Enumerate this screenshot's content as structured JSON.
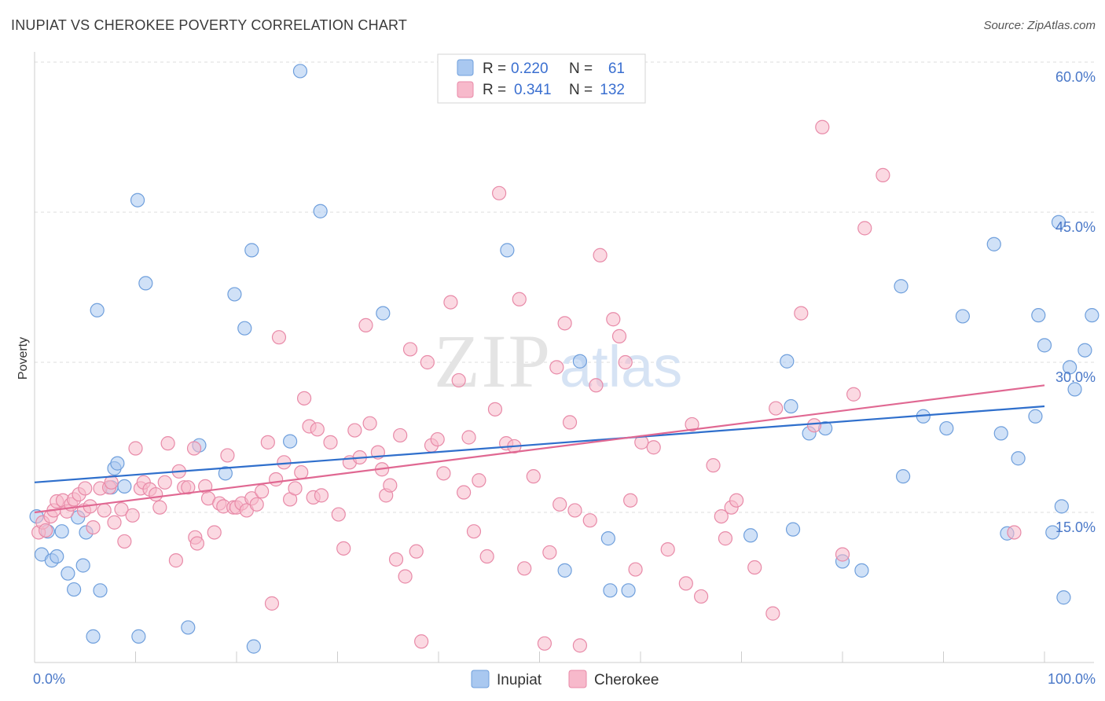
{
  "title": "INUPIAT VS CHEROKEE POVERTY CORRELATION CHART",
  "source": "Source: ZipAtlas.com",
  "watermark": {
    "zip": "ZIP",
    "atlas": "atlas"
  },
  "colors": {
    "inupiat_fill": "#a9c8f0",
    "inupiat_stroke": "#6f9fdc",
    "inupiat_line": "#2f6fcc",
    "cherokee_fill": "#f7b9cb",
    "cherokee_stroke": "#e88aa8",
    "cherokee_line": "#e06892",
    "tick_text": "#4a78c8",
    "grid": "#dcdcdc"
  },
  "legend": {
    "rows": [
      {
        "r_label": "R =",
        "r_value": "0.220",
        "n_label": "N =",
        "n_value": "61"
      },
      {
        "r_label": "R =",
        "r_value": "0.341",
        "n_label": "N =",
        "n_value": "132"
      }
    ]
  },
  "chart_data": {
    "type": "scatter",
    "title": "INUPIAT VS CHEROKEE POVERTY CORRELATION CHART",
    "xlabel": "",
    "ylabel": "Poverty",
    "xlim": [
      0,
      100
    ],
    "ylim": [
      0,
      60
    ],
    "x_tick_labels": [
      "0.0%",
      "100.0%"
    ],
    "y_ticks": [
      15,
      30,
      45,
      60
    ],
    "y_tick_labels": [
      "15.0%",
      "30.0%",
      "45.0%",
      "60.0%"
    ],
    "grid": "horizontal-dashed",
    "legend_position": "top-center",
    "series": [
      {
        "name": "Inupiat",
        "R": 0.22,
        "N": 61,
        "trend": {
          "x": [
            0,
            100
          ],
          "y": [
            18.0,
            25.6
          ]
        },
        "points": [
          [
            0.2,
            14.6
          ],
          [
            0.7,
            10.8
          ],
          [
            1.3,
            13.1
          ],
          [
            1.7,
            10.2
          ],
          [
            2.2,
            10.6
          ],
          [
            2.7,
            13.1
          ],
          [
            3.3,
            8.9
          ],
          [
            3.9,
            7.3
          ],
          [
            4.3,
            14.5
          ],
          [
            4.8,
            9.7
          ],
          [
            5.1,
            13.0
          ],
          [
            5.8,
            2.6
          ],
          [
            6.2,
            35.2
          ],
          [
            6.5,
            7.2
          ],
          [
            7.6,
            17.5
          ],
          [
            7.9,
            19.4
          ],
          [
            8.2,
            19.9
          ],
          [
            8.9,
            17.6
          ],
          [
            10.2,
            46.2
          ],
          [
            10.3,
            2.6
          ],
          [
            11.0,
            37.9
          ],
          [
            15.2,
            3.5
          ],
          [
            16.3,
            21.7
          ],
          [
            18.9,
            18.9
          ],
          [
            19.8,
            36.8
          ],
          [
            20.8,
            33.4
          ],
          [
            21.5,
            41.2
          ],
          [
            21.7,
            1.6
          ],
          [
            25.3,
            22.1
          ],
          [
            26.3,
            59.1
          ],
          [
            28.3,
            45.1
          ],
          [
            34.5,
            34.9
          ],
          [
            46.8,
            41.2
          ],
          [
            52.5,
            9.2
          ],
          [
            54.0,
            30.1
          ],
          [
            56.8,
            12.4
          ],
          [
            57.0,
            7.2
          ],
          [
            58.8,
            7.2
          ],
          [
            70.9,
            12.7
          ],
          [
            75.1,
            13.3
          ],
          [
            74.5,
            30.1
          ],
          [
            74.9,
            25.6
          ],
          [
            76.7,
            22.9
          ],
          [
            78.3,
            23.4
          ],
          [
            80.0,
            10.1
          ],
          [
            81.9,
            9.2
          ],
          [
            85.8,
            37.6
          ],
          [
            86.0,
            18.6
          ],
          [
            88.0,
            24.6
          ],
          [
            90.3,
            23.4
          ],
          [
            91.9,
            34.6
          ],
          [
            95.0,
            41.8
          ],
          [
            95.7,
            22.9
          ],
          [
            96.3,
            12.9
          ],
          [
            97.4,
            20.4
          ],
          [
            99.1,
            24.6
          ],
          [
            99.4,
            34.7
          ],
          [
            100.0,
            31.7
          ],
          [
            100.8,
            13.0
          ],
          [
            101.4,
            44.0
          ],
          [
            101.7,
            15.6
          ],
          [
            101.9,
            6.5
          ],
          [
            102.5,
            29.5
          ],
          [
            103.0,
            27.3
          ],
          [
            104.0,
            31.2
          ],
          [
            104.7,
            34.7
          ]
        ]
      },
      {
        "name": "Cherokee",
        "R": 0.341,
        "N": 132,
        "trend": {
          "x": [
            0,
            100
          ],
          "y": [
            15.0,
            27.7
          ]
        },
        "points": [
          [
            0.4,
            13.0
          ],
          [
            0.8,
            14.0
          ],
          [
            1.1,
            13.2
          ],
          [
            1.6,
            14.6
          ],
          [
            1.9,
            15.2
          ],
          [
            2.2,
            16.1
          ],
          [
            2.8,
            16.2
          ],
          [
            3.2,
            15.1
          ],
          [
            3.6,
            15.8
          ],
          [
            3.9,
            16.3
          ],
          [
            4.4,
            16.8
          ],
          [
            4.9,
            15.2
          ],
          [
            5.0,
            17.4
          ],
          [
            5.5,
            15.6
          ],
          [
            5.8,
            13.5
          ],
          [
            6.5,
            17.4
          ],
          [
            6.9,
            15.2
          ],
          [
            7.4,
            17.5
          ],
          [
            7.6,
            18.0
          ],
          [
            7.9,
            14.0
          ],
          [
            8.6,
            15.3
          ],
          [
            8.9,
            12.1
          ],
          [
            9.7,
            14.7
          ],
          [
            10.0,
            21.4
          ],
          [
            10.5,
            17.4
          ],
          [
            10.8,
            18.0
          ],
          [
            11.4,
            17.3
          ],
          [
            12.0,
            16.8
          ],
          [
            12.4,
            15.5
          ],
          [
            12.9,
            18.0
          ],
          [
            13.2,
            21.9
          ],
          [
            14.0,
            10.2
          ],
          [
            14.3,
            19.1
          ],
          [
            14.8,
            17.5
          ],
          [
            15.2,
            17.5
          ],
          [
            15.8,
            21.4
          ],
          [
            15.9,
            12.5
          ],
          [
            16.1,
            11.9
          ],
          [
            16.9,
            17.6
          ],
          [
            17.2,
            16.4
          ],
          [
            17.8,
            13.0
          ],
          [
            18.3,
            15.9
          ],
          [
            18.7,
            15.6
          ],
          [
            19.1,
            20.7
          ],
          [
            19.7,
            15.5
          ],
          [
            20.0,
            15.5
          ],
          [
            20.5,
            15.9
          ],
          [
            21.0,
            15.2
          ],
          [
            21.5,
            16.4
          ],
          [
            22.0,
            15.8
          ],
          [
            22.5,
            17.1
          ],
          [
            23.1,
            22.0
          ],
          [
            23.5,
            5.9
          ],
          [
            23.9,
            18.3
          ],
          [
            24.2,
            32.5
          ],
          [
            24.7,
            20.0
          ],
          [
            25.3,
            16.3
          ],
          [
            25.8,
            17.4
          ],
          [
            26.4,
            19.0
          ],
          [
            26.7,
            26.4
          ],
          [
            27.2,
            23.6
          ],
          [
            27.6,
            16.5
          ],
          [
            28.0,
            23.3
          ],
          [
            28.4,
            16.7
          ],
          [
            29.3,
            22.0
          ],
          [
            30.1,
            14.8
          ],
          [
            30.6,
            11.4
          ],
          [
            31.2,
            20.0
          ],
          [
            31.7,
            23.2
          ],
          [
            32.2,
            20.5
          ],
          [
            32.8,
            33.7
          ],
          [
            33.2,
            23.9
          ],
          [
            34.0,
            21.0
          ],
          [
            34.4,
            19.3
          ],
          [
            34.8,
            16.7
          ],
          [
            35.2,
            17.7
          ],
          [
            35.8,
            10.3
          ],
          [
            36.2,
            22.7
          ],
          [
            36.7,
            8.6
          ],
          [
            37.2,
            31.3
          ],
          [
            37.8,
            11.1
          ],
          [
            38.3,
            2.1
          ],
          [
            38.9,
            30.0
          ],
          [
            39.3,
            21.7
          ],
          [
            39.9,
            22.3
          ],
          [
            40.5,
            18.9
          ],
          [
            41.2,
            36.0
          ],
          [
            42.0,
            28.2
          ],
          [
            42.5,
            17.0
          ],
          [
            43.0,
            22.5
          ],
          [
            43.5,
            13.1
          ],
          [
            44.0,
            18.2
          ],
          [
            44.8,
            10.6
          ],
          [
            45.6,
            25.3
          ],
          [
            46.0,
            46.9
          ],
          [
            46.7,
            21.9
          ],
          [
            47.5,
            21.6
          ],
          [
            48.0,
            36.3
          ],
          [
            48.5,
            9.4
          ],
          [
            49.4,
            18.6
          ],
          [
            50.5,
            1.9
          ],
          [
            51.0,
            11.0
          ],
          [
            51.7,
            29.5
          ],
          [
            52.0,
            15.8
          ],
          [
            52.5,
            33.9
          ],
          [
            53.0,
            24.0
          ],
          [
            53.5,
            15.2
          ],
          [
            54.0,
            1.7
          ],
          [
            55.0,
            14.2
          ],
          [
            55.6,
            27.7
          ],
          [
            56.0,
            40.7
          ],
          [
            57.3,
            34.3
          ],
          [
            57.9,
            32.6
          ],
          [
            58.5,
            30.0
          ],
          [
            59.0,
            16.2
          ],
          [
            59.5,
            9.3
          ],
          [
            60.1,
            22.0
          ],
          [
            61.3,
            21.5
          ],
          [
            62.7,
            11.3
          ],
          [
            64.5,
            7.9
          ],
          [
            65.1,
            23.8
          ],
          [
            66.0,
            6.6
          ],
          [
            67.2,
            19.7
          ],
          [
            68.0,
            14.6
          ],
          [
            68.4,
            12.4
          ],
          [
            69.0,
            15.5
          ],
          [
            69.5,
            16.2
          ],
          [
            71.3,
            9.5
          ],
          [
            73.1,
            4.9
          ],
          [
            73.4,
            25.4
          ],
          [
            75.9,
            34.9
          ],
          [
            77.2,
            23.7
          ],
          [
            78.0,
            53.5
          ],
          [
            80.0,
            10.8
          ],
          [
            81.1,
            26.8
          ],
          [
            82.2,
            43.4
          ],
          [
            84.0,
            48.7
          ],
          [
            97.0,
            13.0
          ]
        ]
      }
    ]
  }
}
